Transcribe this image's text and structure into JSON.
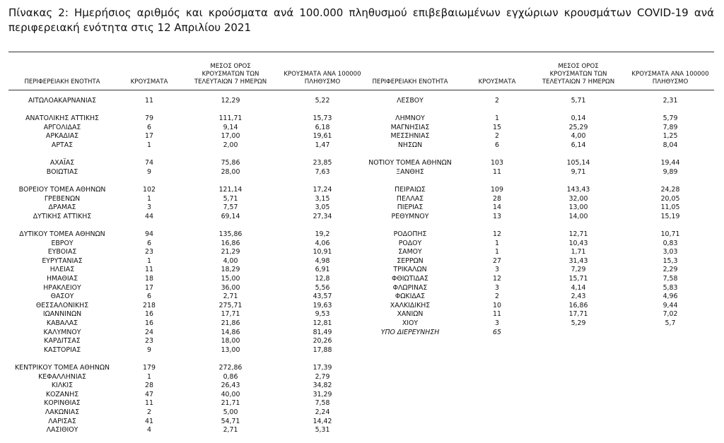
{
  "title": "Πίνακας 2: Ημερήσιος αριθμός και κρούσματα ανά 100.000 πληθυσμού επιβεβαιωμένων εγχώριων κρουσμάτων COVID-19 ανά περιφερειακή ενότητα στις 12 Απριλίου 2021",
  "headers": [
    "ΠΕΡΙΦΕΡΕΙΑΚΗ ΕΝΟΤΗΤΑ",
    "ΚΡΟΥΣΜΑΤΑ",
    "ΜΕΣΟΣ ΟΡΟΣ ΚΡΟΥΣΜΑΤΩΝ ΤΩΝ ΤΕΛΕΥΤΑΙΩΝ 7 ΗΜΕΡΩΝ",
    "ΚΡΟΥΣΜΑΤΑ ΑΝΑ 100000 ΠΛΗΘΥΣΜΟ"
  ],
  "left": [
    [
      [
        "ΑΙΤΩΛΟΑΚΑΡΝΑΝΙΑΣ",
        "11",
        "12,29",
        "5,22"
      ]
    ],
    [
      [
        "ΑΝΑΤΟΛΙΚΗΣ ΑΤΤΙΚΗΣ",
        "79",
        "111,71",
        "15,73"
      ],
      [
        "ΑΡΓΟΛΙΔΑΣ",
        "6",
        "9,14",
        "6,18"
      ],
      [
        "ΑΡΚΑΔΙΑΣ",
        "17",
        "17,00",
        "19,61"
      ],
      [
        "ΑΡΤΑΣ",
        "1",
        "2,00",
        "1,47"
      ]
    ],
    [
      [
        "ΑΧΑΪΑΣ",
        "74",
        "75,86",
        "23,85"
      ],
      [
        "ΒΟΙΩΤΙΑΣ",
        "9",
        "28,00",
        "7,63"
      ]
    ],
    [
      [
        "ΒΟΡΕΙΟΥ ΤΟΜΕΑ ΑΘΗΝΩΝ",
        "102",
        "121,14",
        "17,24"
      ],
      [
        "ΓΡΕΒΕΝΩΝ",
        "1",
        "5,71",
        "3,15"
      ],
      [
        "ΔΡΑΜΑΣ",
        "3",
        "7,57",
        "3,05"
      ],
      [
        "ΔΥΤΙΚΗΣ ΑΤΤΙΚΗΣ",
        "44",
        "69,14",
        "27,34"
      ]
    ],
    [
      [
        "ΔΥΤΙΚΟΥ ΤΟΜΕΑ ΑΘΗΝΩΝ",
        "94",
        "135,86",
        "19,2"
      ],
      [
        "ΕΒΡΟΥ",
        "6",
        "16,86",
        "4,06"
      ],
      [
        "ΕΥΒΟΙΑΣ",
        "23",
        "21,29",
        "10,91"
      ],
      [
        "ΕΥΡΥΤΑΝΙΑΣ",
        "1",
        "4,00",
        "4,98"
      ],
      [
        "ΗΛΕΙΑΣ",
        "11",
        "18,29",
        "6,91"
      ],
      [
        "ΗΜΑΘΙΑΣ",
        "18",
        "15,00",
        "12,8"
      ],
      [
        "ΗΡΑΚΛΕΙΟΥ",
        "17",
        "36,00",
        "5,56"
      ],
      [
        "ΘΑΣΟΥ",
        "6",
        "2,71",
        "43,57"
      ],
      [
        "ΘΕΣΣΑΛΟΝΙΚΗΣ",
        "218",
        "275,71",
        "19,63"
      ],
      [
        "ΙΩΑΝΝΙΝΩΝ",
        "16",
        "17,71",
        "9,53"
      ],
      [
        "ΚΑΒΑΛΑΣ",
        "16",
        "21,86",
        "12,81"
      ],
      [
        "ΚΑΛΥΜΝΟΥ",
        "24",
        "14,86",
        "81,49"
      ],
      [
        "ΚΑΡΔΙΤΣΑΣ",
        "23",
        "18,00",
        "20,26"
      ],
      [
        "ΚΑΣΤΟΡΙΑΣ",
        "9",
        "13,00",
        "17,88"
      ]
    ],
    [
      [
        "ΚΕΝΤΡΙΚΟΥ ΤΟΜΕΑ ΑΘΗΝΩΝ",
        "179",
        "272,86",
        "17,39"
      ],
      [
        "ΚΕΦΑΛΛΗΝΙΑΣ",
        "1",
        "0,86",
        "2,79"
      ],
      [
        "ΚΙΛΚΙΣ",
        "28",
        "26,43",
        "34,82"
      ],
      [
        "ΚΟΖΑΝΗΣ",
        "47",
        "40,00",
        "31,29"
      ],
      [
        "ΚΟΡΙΝΘΙΑΣ",
        "11",
        "21,71",
        "7,58"
      ],
      [
        "ΛΑΚΩΝΙΑΣ",
        "2",
        "5,00",
        "2,24"
      ],
      [
        "ΛΑΡΙΣΑΣ",
        "41",
        "54,71",
        "14,42"
      ],
      [
        "ΛΑΣΙΘΙΟΥ",
        "4",
        "2,71",
        "5,31"
      ]
    ]
  ],
  "right": [
    [
      [
        "ΛΕΣΒΟΥ",
        "2",
        "5,71",
        "2,31"
      ]
    ],
    [
      [
        "ΛΗΜΝΟΥ",
        "1",
        "0,14",
        "5,79"
      ],
      [
        "ΜΑΓΝΗΣΙΑΣ",
        "15",
        "25,29",
        "7,89"
      ],
      [
        "ΜΕΣΣΗΝΙΑΣ",
        "2",
        "4,00",
        "1,25"
      ],
      [
        "ΝΗΣΩΝ",
        "6",
        "6,14",
        "8,04"
      ]
    ],
    [
      [
        "ΝΟΤΙΟΥ ΤΟΜΕΑ ΑΘΗΝΩΝ",
        "103",
        "105,14",
        "19,44"
      ],
      [
        "ΞΑΝΘΗΣ",
        "11",
        "9,71",
        "9,89"
      ]
    ],
    [
      [
        "ΠΕΙΡΑΙΩΣ",
        "109",
        "143,43",
        "24,28"
      ],
      [
        "ΠΕΛΛΑΣ",
        "28",
        "32,00",
        "20,05"
      ],
      [
        "ΠΙΕΡΙΑΣ",
        "14",
        "13,00",
        "11,05"
      ],
      [
        "ΡΕΘΥΜΝΟΥ",
        "13",
        "14,00",
        "15,19"
      ]
    ],
    [
      [
        "ΡΟΔΟΠΗΣ",
        "12",
        "12,71",
        "10,71"
      ],
      [
        "ΡΟΔΟΥ",
        "1",
        "10,43",
        "0,83"
      ],
      [
        "ΣΑΜΟΥ",
        "1",
        "1,71",
        "3,03"
      ],
      [
        "ΣΕΡΡΩΝ",
        "27",
        "31,43",
        "15,3"
      ],
      [
        "ΤΡΙΚΑΛΩΝ",
        "3",
        "7,29",
        "2,29"
      ],
      [
        "ΦΘΙΩΤΙΔΑΣ",
        "12",
        "15,71",
        "7,58"
      ],
      [
        "ΦΛΩΡΙΝΑΣ",
        "3",
        "4,14",
        "5,83"
      ],
      [
        "ΦΩΚΙΔΑΣ",
        "2",
        "2,43",
        "4,96"
      ],
      [
        "ΧΑΛΚΙΔΙΚΗΣ",
        "10",
        "16,86",
        "9,44"
      ],
      [
        "ΧΑΝΙΩΝ",
        "11",
        "17,71",
        "7,02"
      ],
      [
        "ΧΙΟΥ",
        "3",
        "5,29",
        "5,7"
      ],
      [
        "ΥΠΟ ΔΙΕΡΕΥΝΗΣΗ",
        "65"
      ]
    ]
  ]
}
